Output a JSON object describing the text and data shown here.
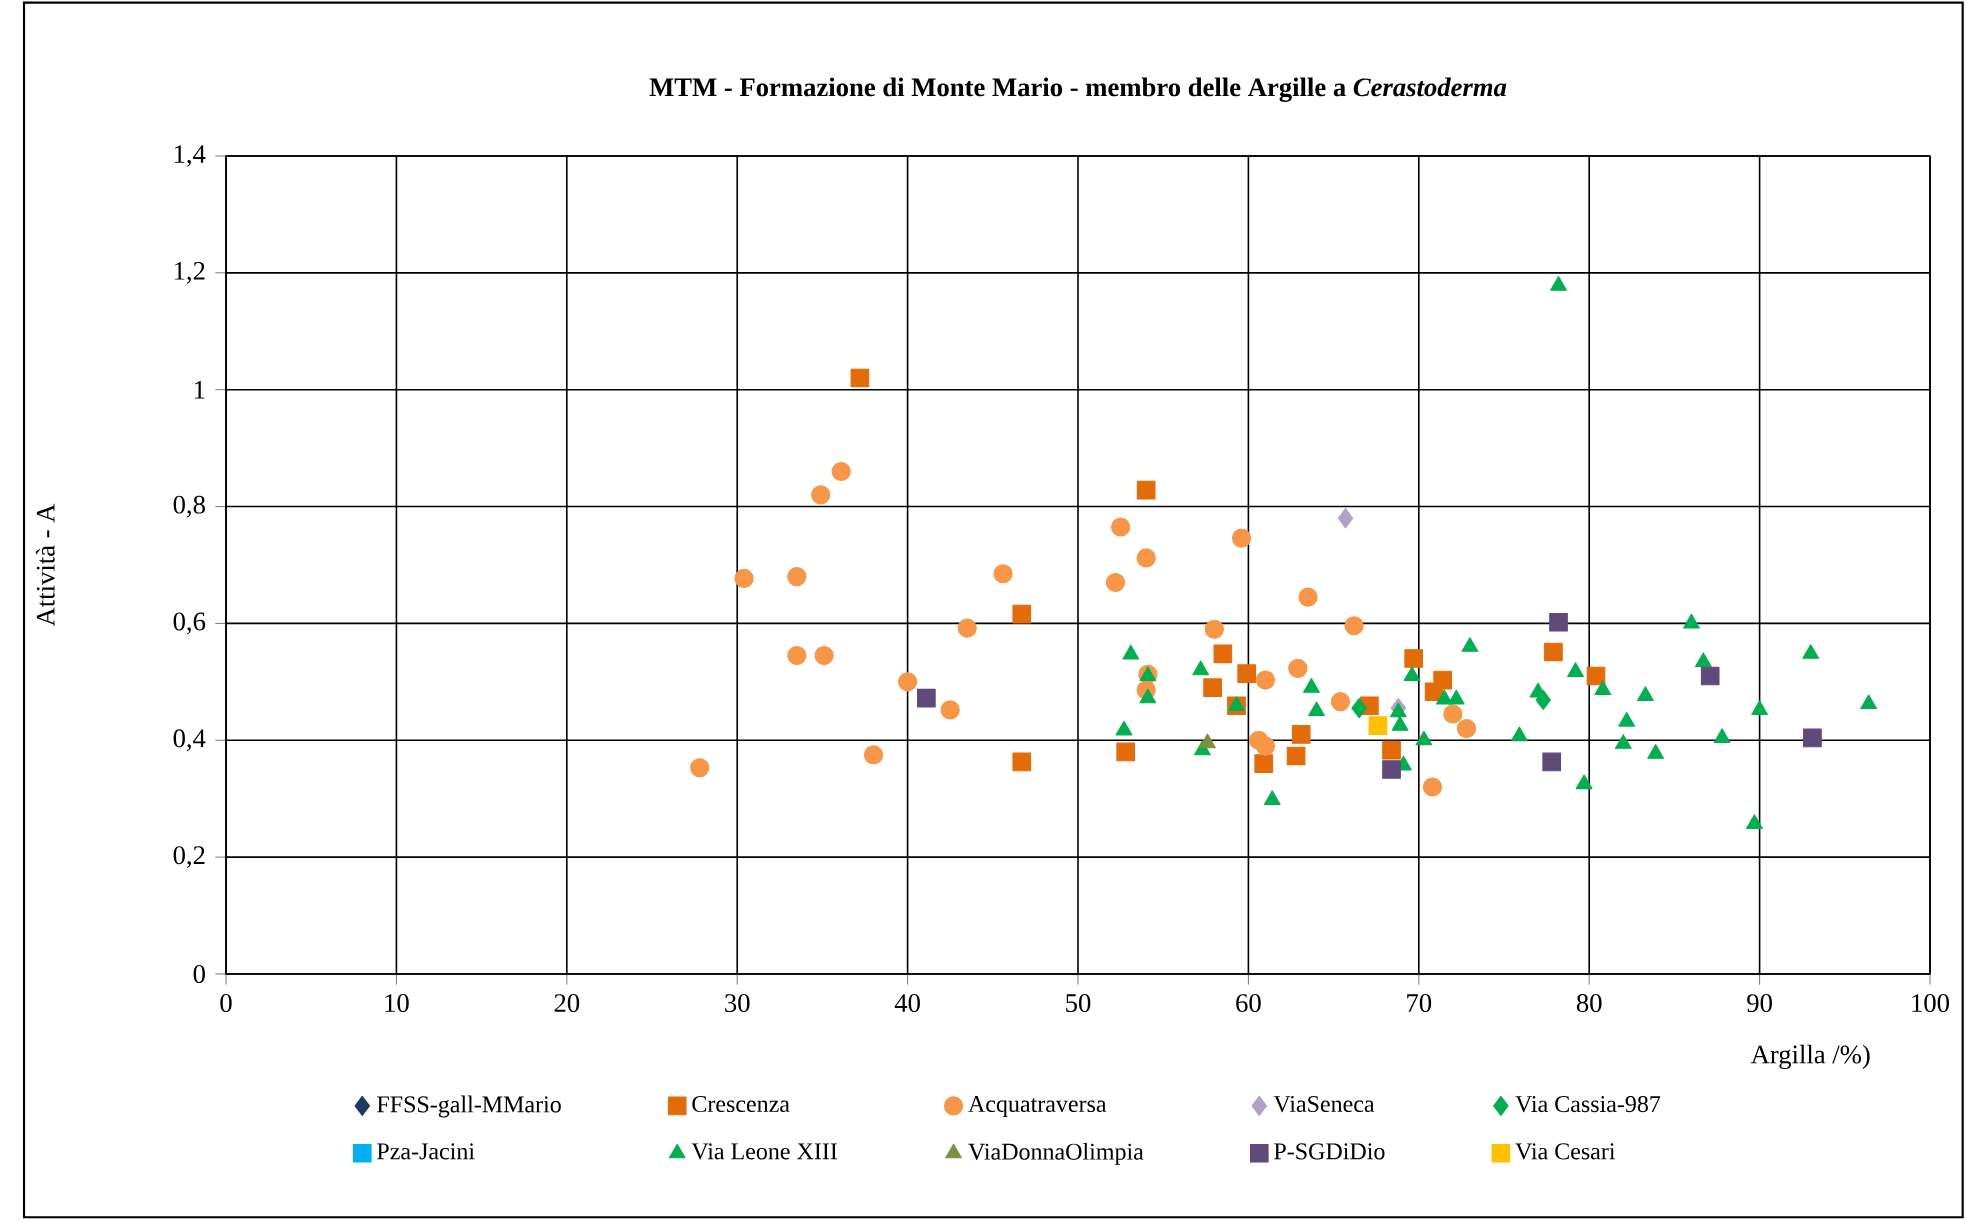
{
  "chart_data": {
    "type": "scatter",
    "title": "MTM - Formazione di Monte Mario - membro delle Argille a *Cerastoderma*",
    "xlabel": "Argilla /%)",
    "ylabel": "Attività - A",
    "xlim": [
      0,
      100
    ],
    "xticks": [
      0,
      10,
      20,
      30,
      40,
      50,
      60,
      70,
      80,
      90,
      100
    ],
    "ylim": [
      0,
      1.4
    ],
    "yticks": [
      {
        "value": 0,
        "label": "0"
      },
      {
        "value": 0.2,
        "label": "0,2"
      },
      {
        "value": 0.4,
        "label": "0,4"
      },
      {
        "value": 0.6,
        "label": "0,6"
      },
      {
        "value": 0.8,
        "label": "0,8"
      },
      {
        "value": 1,
        "label": "1"
      },
      {
        "value": 1.2,
        "label": "1,2"
      },
      {
        "value": 1.4,
        "label": "1,4"
      }
    ],
    "grid": true,
    "legend": "bottom",
    "series": [
      {
        "name": "FFSS-gall-MMario",
        "color": "#1f3864",
        "marker": "diamond"
      },
      {
        "name": "Crescenza",
        "color": "#e36c09",
        "marker": "square",
        "x": [
          37.2,
          46.7,
          46.7,
          52.8,
          54,
          57.9,
          58.5,
          59.3,
          59.9,
          60.9,
          62.8,
          63.1,
          67.1,
          68.4,
          69.7,
          70.9,
          71.4,
          77.9,
          80.4
        ],
        "values": [
          1.02,
          0.616,
          0.363,
          0.38,
          0.828,
          0.49,
          0.548,
          0.459,
          0.514,
          0.36,
          0.373,
          0.41,
          0.459,
          0.383,
          0.54,
          0.483,
          0.503,
          0.551,
          0.51
        ]
      },
      {
        "name": "Acquatraversa",
        "color": "#f79646",
        "marker": "circle",
        "x": [
          27.8,
          30.4,
          33.5,
          33.5,
          35.1,
          34.9,
          36.1,
          38,
          40,
          42.5,
          43.5,
          45.6,
          52.2,
          52.5,
          54,
          54.1,
          54,
          58,
          59.6,
          60.6,
          61,
          61,
          62.9,
          63.5,
          65.4,
          66.2,
          70.8,
          72,
          72.8
        ],
        "values": [
          0.353,
          0.677,
          0.68,
          0.545,
          0.545,
          0.82,
          0.86,
          0.375,
          0.5,
          0.452,
          0.592,
          0.685,
          0.67,
          0.765,
          0.712,
          0.513,
          0.486,
          0.59,
          0.746,
          0.4,
          0.39,
          0.503,
          0.523,
          0.645,
          0.466,
          0.596,
          0.32,
          0.445,
          0.42
        ]
      },
      {
        "name": "ViaSeneca",
        "color": "#b2a1c7",
        "marker": "diamond",
        "x": [
          65.7,
          68.8
        ],
        "values": [
          0.78,
          0.455
        ]
      },
      {
        "name": "Via Cassia-987",
        "color": "#00b050",
        "marker": "diamond",
        "x": [
          66.5,
          77.3
        ],
        "values": [
          0.455,
          0.469
        ]
      },
      {
        "name": "Pza-Jacini",
        "color": "#00b0f0",
        "marker": "square"
      },
      {
        "name": "Via Leone XIII",
        "color": "#00b050",
        "marker": "triangle",
        "x": [
          52.7,
          53.1,
          54.1,
          54.1,
          57.2,
          57.3,
          59.3,
          61.4,
          63.7,
          64,
          68.8,
          68.9,
          69.1,
          69.6,
          70.3,
          71.5,
          72.2,
          73,
          75.9,
          77,
          78.2,
          79.2,
          79.7,
          80.8,
          82,
          82.2,
          83.3,
          83.9,
          86,
          86.7,
          87.8,
          90,
          89.7,
          93,
          96.4
        ],
        "values": [
          0.417,
          0.547,
          0.51,
          0.472,
          0.52,
          0.383,
          0.459,
          0.298,
          0.49,
          0.45,
          0.448,
          0.425,
          0.357,
          0.51,
          0.4,
          0.47,
          0.47,
          0.56,
          0.407,
          0.482,
          1.178,
          0.517,
          0.325,
          0.486,
          0.394,
          0.432,
          0.476,
          0.377,
          0.6,
          0.534,
          0.404,
          0.452,
          0.257,
          0.548,
          0.462
        ]
      },
      {
        "name": "ViaDonnaOlimpia",
        "color": "#77933c",
        "marker": "triangle",
        "x": [
          57.6
        ],
        "values": [
          0.395
        ]
      },
      {
        "name": "P-SGDiDio",
        "color": "#604a7b",
        "marker": "square",
        "x": [
          41.1,
          68.4,
          78.2,
          77.8,
          87.1,
          93.1
        ],
        "values": [
          0.472,
          0.35,
          0.602,
          0.363,
          0.51,
          0.404
        ]
      },
      {
        "name": "Via Cesari",
        "color": "#ffc000",
        "marker": "square",
        "x": [
          67.6
        ],
        "values": [
          0.425
        ]
      }
    ]
  }
}
